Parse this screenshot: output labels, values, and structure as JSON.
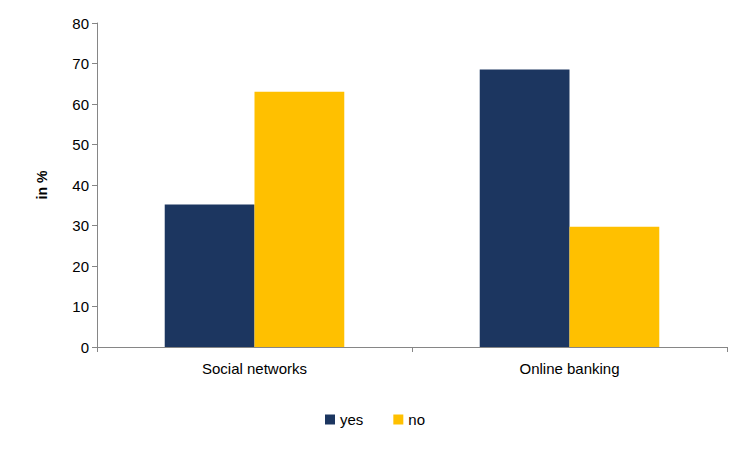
{
  "chart_data": {
    "type": "bar",
    "y_label": "in %",
    "categories": [
      "Social networks",
      "Online banking"
    ],
    "series": [
      {
        "name": "yes",
        "color": "#1c3660",
        "values": [
          35.2,
          68.5
        ]
      },
      {
        "name": "no",
        "color": "#ffc000",
        "values": [
          63.0,
          29.7
        ]
      }
    ],
    "ylim": [
      0,
      80
    ],
    "yticks": [
      0,
      10,
      20,
      30,
      40,
      50,
      60,
      70,
      80
    ],
    "grid": false,
    "legend": "bottom"
  }
}
